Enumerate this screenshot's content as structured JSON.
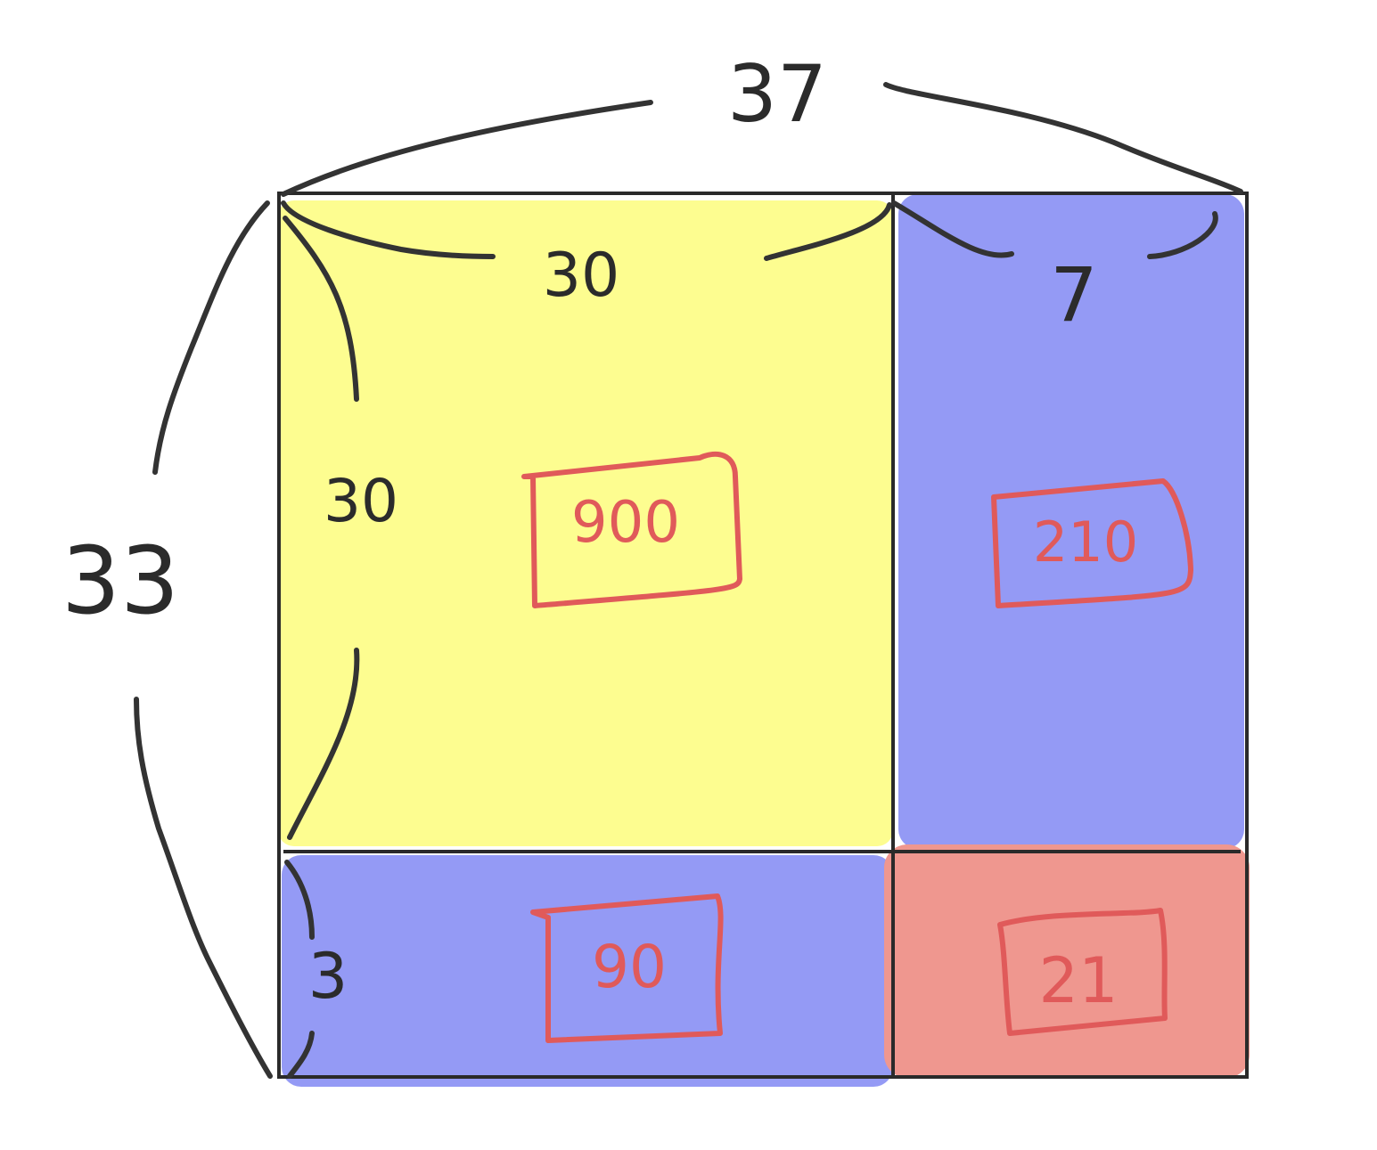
{
  "dimensions": {
    "total_width": "37",
    "total_height": "33",
    "width_part_a": "30",
    "width_part_b": "7",
    "height_part_a": "30",
    "height_part_b": "3"
  },
  "products": {
    "top_left": "900",
    "top_right": "210",
    "bottom_left": "90",
    "bottom_right": "21"
  },
  "colors": {
    "yellow": "#fdfd8a",
    "blue": "#949af5",
    "red": "#ef978f",
    "ink": "#2b2b2b",
    "annotation": "#e05a5a"
  }
}
